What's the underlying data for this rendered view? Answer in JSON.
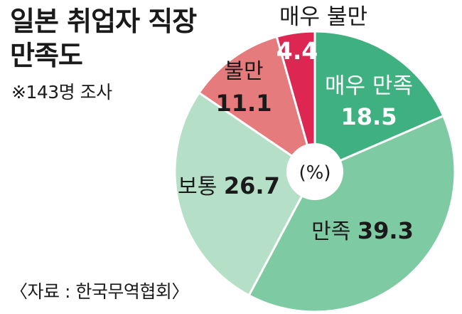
{
  "header": {
    "title_line1": "일본 취업자 직장",
    "title_line2": "만족도",
    "sample_note": "※143명 조사",
    "source": "〈자료 : 한국무역협회〉"
  },
  "chart_data": {
    "type": "pie",
    "title": "일본 취업자 직장 만족도",
    "unit": "(%)",
    "slices": [
      {
        "label": "매우 만족",
        "value": 18.5,
        "color": "#3fb07f",
        "text_color": "#ffffff"
      },
      {
        "label": "만족",
        "value": 39.3,
        "color": "#7ecaa3",
        "text_color": "#1a1a1a"
      },
      {
        "label": "보통",
        "value": 26.7,
        "color": "#b5dfc7",
        "text_color": "#1a1a1a"
      },
      {
        "label": "불만",
        "value": 11.1,
        "color": "#e67b7e",
        "text_color": "#1a1a1a"
      },
      {
        "label": "매우 불만",
        "value": 4.4,
        "color": "#dd2652",
        "text_color": "#ffffff"
      }
    ]
  }
}
